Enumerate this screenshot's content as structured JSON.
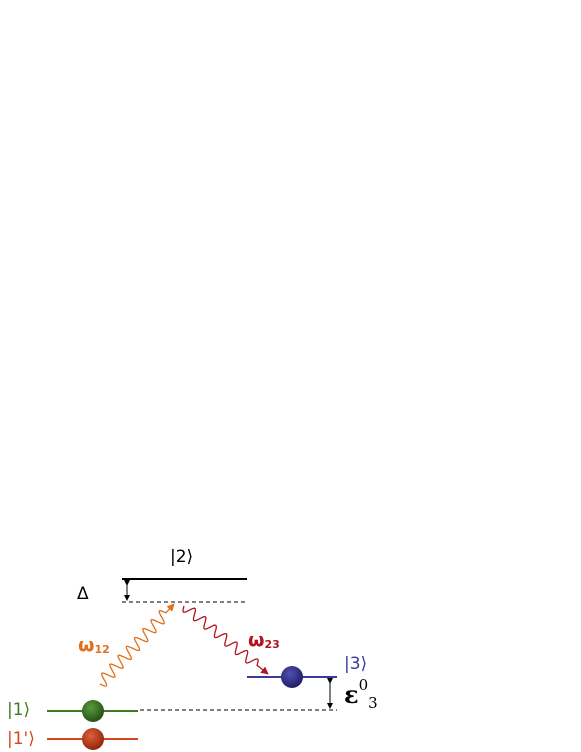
{
  "levels": [
    {
      "label": "|2⟩"
    },
    {
      "label": "|3⟩"
    },
    {
      "label": "|1⟩"
    },
    {
      "label": "|1'⟩"
    }
  ],
  "detuning": {
    "symbol": "Δ"
  },
  "transitions": [
    {
      "symbol": "ω",
      "subscript": "12"
    },
    {
      "symbol": "ω",
      "subscript": "23"
    }
  ],
  "energy": {
    "symbol": "ε",
    "superscript": "0",
    "subscript": "3"
  }
}
